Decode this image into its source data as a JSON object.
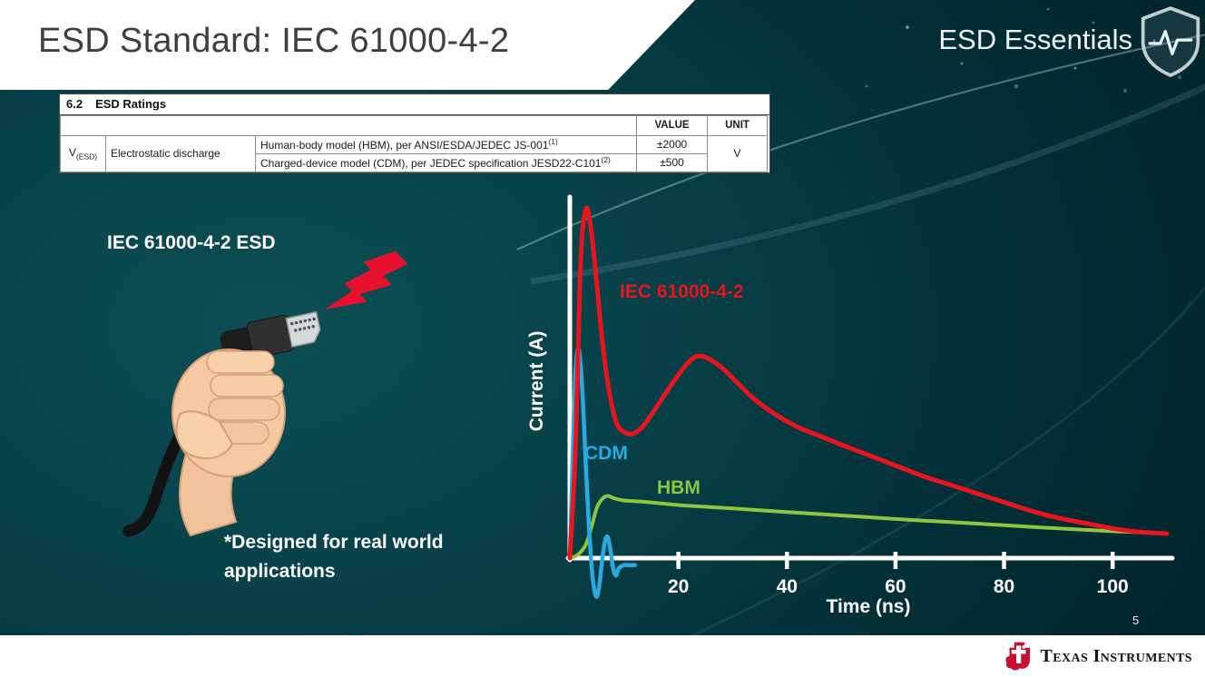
{
  "slide": {
    "title": "ESD Standard: IEC 61000-4-2",
    "series_brand": "ESD Essentials",
    "page_number": "5"
  },
  "table": {
    "section_no": "6.2",
    "section_title": "ESD Ratings",
    "headers": {
      "value": "VALUE",
      "unit": "UNIT"
    },
    "param": {
      "symbol": "V",
      "symbol_sub": "(ESD)",
      "name": "Electrostatic discharge"
    },
    "rows": [
      {
        "model": "Human-body model (HBM), per ANSI/ESDA/JEDEC JS-001",
        "footnote": "(1)",
        "value": "±2000"
      },
      {
        "model": "Charged-device model (CDM), per JEDEC specification JESD22-C101",
        "footnote": "(2)",
        "value": "±500"
      }
    ],
    "unit": "V"
  },
  "left_panel": {
    "esd_label": "IEC 61000-4-2 ESD",
    "note": "*Designed for real world\napplications"
  },
  "chart_data": {
    "type": "line",
    "title": "",
    "xlabel": "Time (ns)",
    "ylabel": "Current (A)",
    "xlim": [
      0,
      110
    ],
    "ylim": [
      -0.15,
      1.05
    ],
    "x_ticks": [
      20,
      40,
      60,
      80,
      100
    ],
    "grid": false,
    "y_axis_tick_labels": "none (relative current amplitude)",
    "series": [
      {
        "name": "IEC 61000-4-2",
        "color": "#e8141e",
        "x": [
          0,
          1,
          2,
          3,
          4,
          5,
          6,
          7,
          8,
          9,
          11,
          13,
          15,
          18,
          21,
          23,
          25,
          28,
          31,
          34,
          38,
          42,
          46,
          50,
          55,
          60,
          65,
          70,
          75,
          80,
          85,
          90,
          95,
          100,
          105,
          110
        ],
        "y": [
          0,
          0.3,
          0.85,
          1.0,
          0.93,
          0.78,
          0.62,
          0.5,
          0.42,
          0.375,
          0.355,
          0.37,
          0.41,
          0.48,
          0.545,
          0.575,
          0.575,
          0.545,
          0.5,
          0.455,
          0.41,
          0.375,
          0.35,
          0.325,
          0.295,
          0.265,
          0.235,
          0.21,
          0.185,
          0.16,
          0.135,
          0.115,
          0.1,
          0.085,
          0.075,
          0.07
        ]
      },
      {
        "name": "CDM",
        "color": "#29abe2",
        "x": [
          0,
          0.5,
          1,
          1.5,
          2,
          2.5,
          3,
          3.5,
          4,
          4.5,
          5,
          5.5,
          6,
          6.5,
          7,
          7.5,
          8,
          8.5,
          9,
          10,
          11,
          12
        ],
        "y": [
          0,
          0.28,
          0.52,
          0.6,
          0.55,
          0.42,
          0.25,
          0.1,
          -0.02,
          -0.09,
          -0.11,
          -0.07,
          0.0,
          0.05,
          0.06,
          0.02,
          -0.03,
          -0.05,
          -0.03,
          -0.02,
          -0.02,
          -0.02
        ]
      },
      {
        "name": "HBM",
        "color": "#8ec63f",
        "x": [
          0,
          1.5,
          3,
          4,
          5,
          6,
          7,
          8,
          10,
          13,
          16,
          20,
          25,
          30,
          40,
          50,
          60,
          70,
          80,
          90,
          100,
          108
        ],
        "y": [
          0,
          0.01,
          0.04,
          0.09,
          0.145,
          0.17,
          0.178,
          0.172,
          0.165,
          0.162,
          0.158,
          0.152,
          0.147,
          0.142,
          0.132,
          0.122,
          0.112,
          0.103,
          0.094,
          0.085,
          0.077,
          0.072
        ]
      }
    ]
  },
  "footer": {
    "brand": "Texas Instruments"
  }
}
